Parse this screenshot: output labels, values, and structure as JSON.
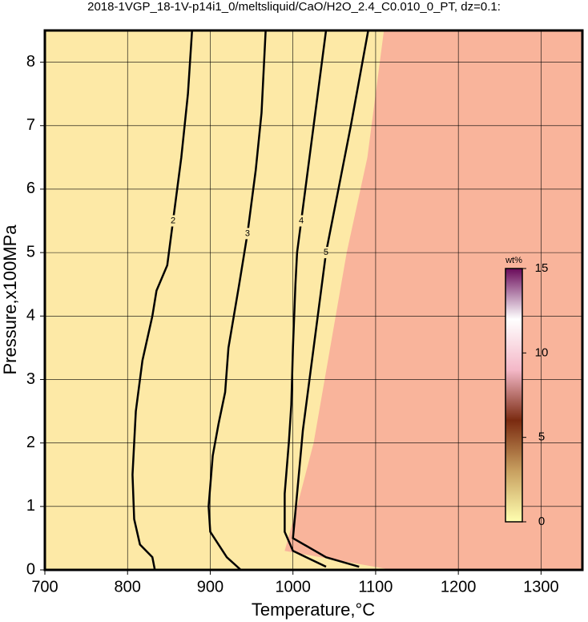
{
  "chart_data": {
    "type": "contour",
    "title": "2018-1VGP_18-1V-p14i1_0/meltsliquid/CaO/H2O_2.4_C0.010_0_PT, dz=0.1:",
    "x_label": "Temperature,°C",
    "y_label": "Pressure,x100MPa",
    "xlim": [
      700,
      1350
    ],
    "ylim": [
      0,
      8.5
    ],
    "xticks": [
      700,
      800,
      900,
      1000,
      1100,
      1200,
      1300
    ],
    "yticks": [
      0,
      1,
      2,
      3,
      4,
      5,
      6,
      7,
      8
    ],
    "grid": true,
    "background_color": "#fde9a6",
    "fill_color": "#f9b49b",
    "fill_boundary": {
      "x": [
        1120,
        990,
        1005,
        1025,
        1045,
        1065,
        1090,
        1110
      ],
      "y": [
        0,
        0.3,
        1.0,
        2.0,
        3.5,
        5.0,
        6.5,
        8.5
      ]
    },
    "contours": [
      {
        "level": 2,
        "x": [
          833,
          830,
          815,
          808,
          806,
          810,
          818,
          830,
          835,
          848,
          855,
          865,
          873,
          878
        ],
        "y": [
          0,
          0.2,
          0.4,
          0.8,
          1.5,
          2.5,
          3.3,
          4.0,
          4.4,
          4.8,
          5.5,
          6.5,
          7.5,
          8.5
        ]
      },
      {
        "level": 3,
        "x": [
          937,
          920,
          900,
          898,
          903,
          910,
          918,
          922,
          935,
          945,
          955,
          962,
          967
        ],
        "y": [
          0,
          0.2,
          0.6,
          1.0,
          1.8,
          2.3,
          2.8,
          3.5,
          4.5,
          5.3,
          6.3,
          7.2,
          8.5
        ]
      },
      {
        "level": 4,
        "x": [
          1040,
          1000,
          990,
          990,
          995,
          998,
          1000,
          1003,
          1005,
          1010,
          1020,
          1030,
          1040
        ],
        "y": [
          0.05,
          0.3,
          0.6,
          1.2,
          2.0,
          2.6,
          3.5,
          4.5,
          5.0,
          5.5,
          6.5,
          7.5,
          8.5
        ]
      },
      {
        "level": 5,
        "x": [
          1080,
          1040,
          1000,
          1005,
          1012,
          1020,
          1030,
          1040,
          1055,
          1070,
          1091
        ],
        "y": [
          0.05,
          0.2,
          0.5,
          1.2,
          2.2,
          3.0,
          4.0,
          5.0,
          6.0,
          7.0,
          8.5
        ]
      }
    ],
    "colorbar": {
      "label": "wt%",
      "lim": [
        0,
        15
      ],
      "ticks": [
        0,
        5,
        10,
        15
      ],
      "colors": [
        "#ffffb0",
        "#c8a060",
        "#7a2a10",
        "#f4b8c8",
        "#ffffff",
        "#6a0a5a"
      ]
    }
  }
}
